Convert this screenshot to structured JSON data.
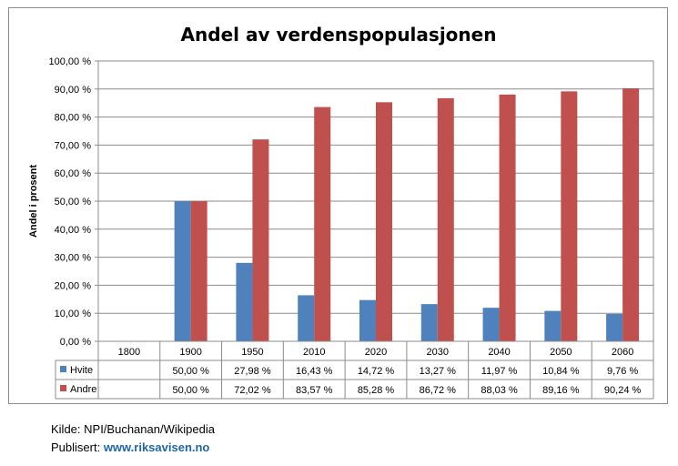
{
  "chart_data": {
    "type": "bar",
    "title": "Andel av verdenspopulasjonen",
    "ylabel": "Andel i prosent",
    "xlabel": "",
    "categories": [
      "1800",
      "1900",
      "1950",
      "2010",
      "2020",
      "2030",
      "2040",
      "2050",
      "2060"
    ],
    "series": [
      {
        "name": "Hvite",
        "color": "#4f81bd",
        "values": [
          null,
          50.0,
          27.98,
          16.43,
          14.72,
          13.27,
          11.97,
          10.84,
          9.76
        ],
        "labels": [
          "",
          "50,00 %",
          "27,98 %",
          "16,43 %",
          "14,72 %",
          "13,27 %",
          "11,97 %",
          "10,84 %",
          "9,76 %"
        ]
      },
      {
        "name": "Andre",
        "color": "#c0504d",
        "values": [
          null,
          50.0,
          72.02,
          83.57,
          85.28,
          86.72,
          88.03,
          89.16,
          90.24
        ],
        "labels": [
          "",
          "50,00 %",
          "72,02 %",
          "83,57 %",
          "85,28 %",
          "86,72 %",
          "88,03 %",
          "89,16 %",
          "90,24 %"
        ]
      }
    ],
    "ylim": [
      0,
      100
    ],
    "yticks": [
      "0,00 %",
      "10,00 %",
      "20,00 %",
      "30,00 %",
      "40,00 %",
      "50,00 %",
      "60,00 %",
      "70,00 %",
      "80,00 %",
      "90,00 %",
      "100,00 %"
    ],
    "grid": true,
    "legend": "data-table"
  },
  "credits": {
    "source": "Kilde: NPI/Buchanan/Wikipedia",
    "published_label": "Publisert: ",
    "published_link": "www.riksavisen.no"
  }
}
